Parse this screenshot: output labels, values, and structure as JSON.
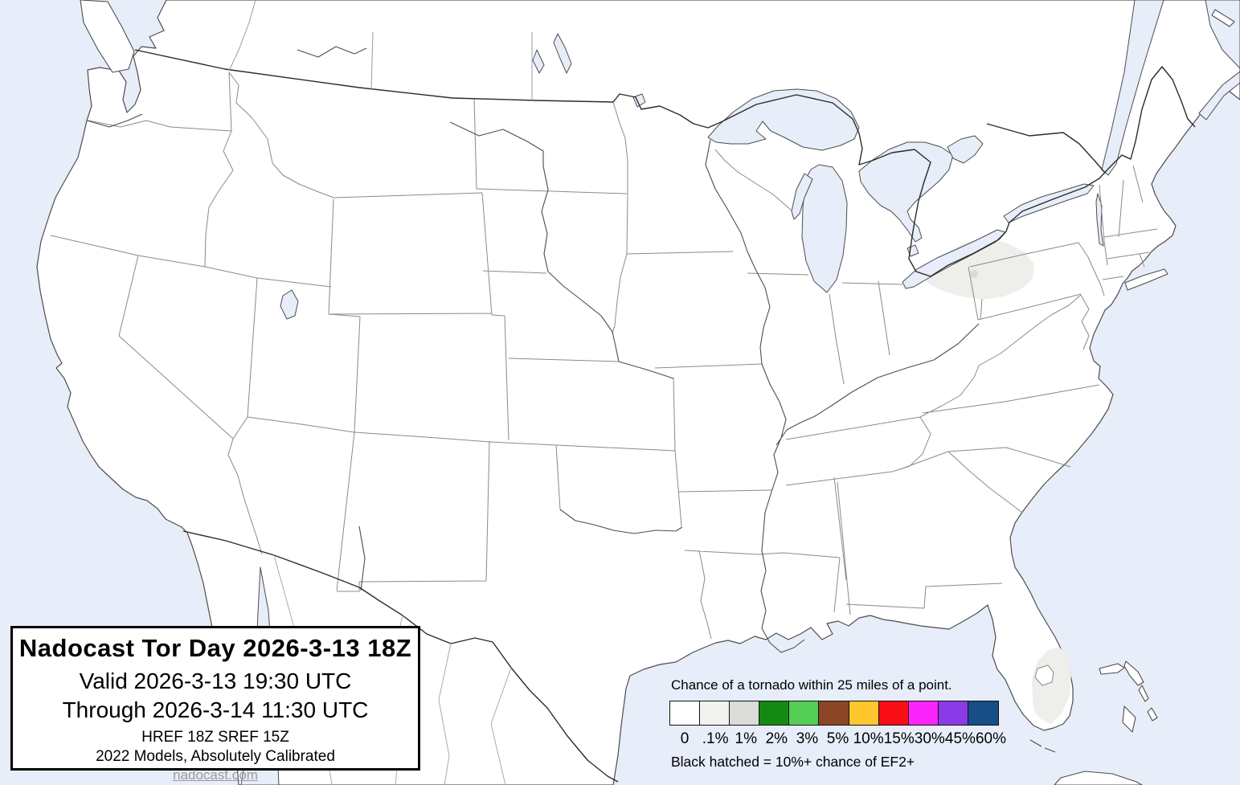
{
  "title_box": {
    "title": "Nadocast Tor Day 2026-3-13 18Z",
    "valid": "Valid 2026-3-13 19:30 UTC",
    "through": "Through 2026-3-14 11:30 UTC",
    "models": "HREF 18Z SREF 15Z",
    "calibration": "2022 Models, Absolutely Calibrated",
    "link": "nadocast.com"
  },
  "legend": {
    "heading": "Chance of a tornado within 25 miles of a point.",
    "note": "Black hatched = 10%+ chance of EF2+",
    "bins": [
      {
        "label": "0",
        "color": "#FFFFFF"
      },
      {
        "label": ".1%",
        "color": "#F2F2F0"
      },
      {
        "label": "1%",
        "color": "#DBDBD9"
      },
      {
        "label": "2%",
        "color": "#148A14"
      },
      {
        "label": "3%",
        "color": "#54CE54"
      },
      {
        "label": "5%",
        "color": "#8A4627"
      },
      {
        "label": "10%",
        "color": "#FFC72E"
      },
      {
        "label": "15%",
        "color": "#FA0E16"
      },
      {
        "label": "30%",
        "color": "#FB24FB"
      },
      {
        "label": "45%",
        "color": "#8B3AE8"
      },
      {
        "label": "60%",
        "color": "#174E88"
      }
    ]
  },
  "map": {
    "colors": {
      "water": "#E7EDF9",
      "land": "#FFFFFF",
      "coastline": "#4D4D4D",
      "state_border": "#8A8A8A",
      "national_border": "#2B2B2B",
      "river": "#4D4D4D",
      "prob_point1_fill": "#EEEEEB",
      "prob_1_fill": "#D9D9D5"
    },
    "forecast_areas": [
      {
        "level": ".1%",
        "region": "northwest-pennsylvania-lake-erie-shore"
      },
      {
        "level": "1%",
        "region": "small-spot-northwest-pennsylvania"
      },
      {
        "level": ".1%",
        "region": "south-central-florida"
      }
    ]
  }
}
